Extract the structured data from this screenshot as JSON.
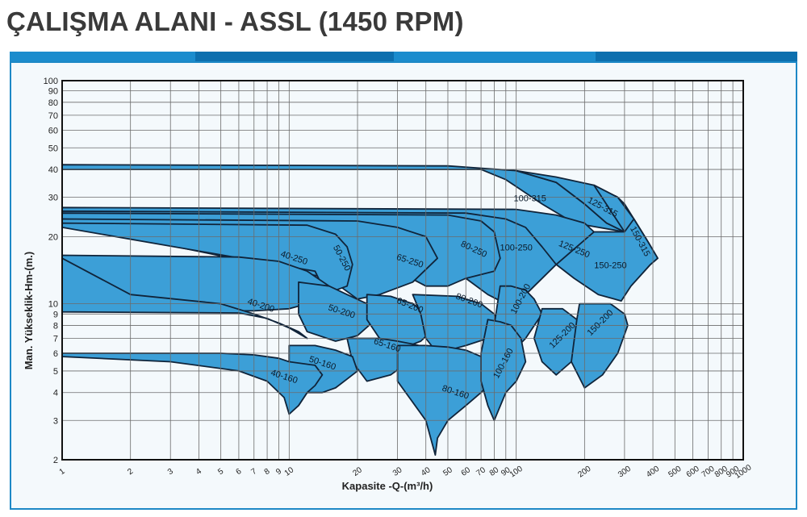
{
  "title": "ÇALIŞMA ALANI - ASSL (1450 RPM)",
  "colors": {
    "band": [
      "#1b8ccd",
      "#0d6fae",
      "#1b8ccd",
      "#0d6fae"
    ],
    "panel_border": "#1d88c6",
    "region_fill": "#3c9fd7",
    "region_stroke": "#10243a",
    "grid": "#6b6b6b",
    "text": "#222222"
  },
  "chart_data": {
    "type": "area",
    "title": "",
    "xlabel": "Kapasite -Q-(m³/h)",
    "ylabel": "Man. Yükseklik-Hm-(m.)",
    "xscale": "log",
    "yscale": "log",
    "xlim": [
      1,
      1000
    ],
    "ylim": [
      2,
      100
    ],
    "grid": true,
    "x_ticks": [
      "1",
      "2",
      "3",
      "4",
      "5",
      "6",
      "7",
      "8",
      "9",
      "10",
      "20",
      "30",
      "40",
      "50",
      "60",
      "70",
      "80",
      "90",
      "100",
      "200",
      "300",
      "400",
      "500",
      "600",
      "700",
      "800",
      "900",
      "1000"
    ],
    "y_ticks": [
      "2",
      "3",
      "4",
      "5",
      "6",
      "7",
      "8",
      "9",
      "10",
      "20",
      "30",
      "40",
      "50",
      "60",
      "70",
      "80",
      "90",
      "100"
    ],
    "regions": [
      {
        "name": "100-315",
        "label_at": [
          115,
          29.5
        ],
        "rotate": 0,
        "polygon": [
          [
            1,
            42
          ],
          [
            50,
            41.5
          ],
          [
            100,
            39.5
          ],
          [
            150,
            35
          ],
          [
            200,
            28
          ],
          [
            250,
            23
          ],
          [
            300,
            21
          ],
          [
            180,
            23
          ],
          [
            130,
            28
          ],
          [
            90,
            36
          ],
          [
            70,
            40
          ],
          [
            1,
            40
          ]
        ]
      },
      {
        "name": "125-315",
        "label_at": [
          240,
          27
        ],
        "rotate": 28,
        "polygon": [
          [
            100,
            39.5
          ],
          [
            150,
            37
          ],
          [
            220,
            34
          ],
          [
            280,
            30
          ],
          [
            300,
            28
          ],
          [
            330,
            24
          ],
          [
            300,
            21
          ],
          [
            250,
            23
          ],
          [
            200,
            28
          ],
          [
            150,
            35
          ]
        ]
      },
      {
        "name": "150-315",
        "label_at": [
          350,
          19
        ],
        "rotate": 62,
        "polygon": [
          [
            220,
            34
          ],
          [
            280,
            30
          ],
          [
            330,
            24
          ],
          [
            380,
            19
          ],
          [
            420,
            16
          ],
          [
            390,
            15
          ],
          [
            320,
            12
          ],
          [
            280,
            14
          ],
          [
            260,
            16
          ],
          [
            300,
            21
          ]
        ]
      },
      {
        "name": "150-250",
        "label_at": [
          260,
          14.8
        ],
        "rotate": 0,
        "polygon": [
          [
            220,
            21
          ],
          [
            300,
            21
          ],
          [
            330,
            24
          ],
          [
            380,
            19
          ],
          [
            420,
            16
          ],
          [
            390,
            15
          ],
          [
            320,
            12
          ],
          [
            290,
            10.3
          ],
          [
            230,
            11
          ],
          [
            180,
            13
          ],
          [
            150,
            15
          ]
        ]
      },
      {
        "name": "125-250",
        "label_at": [
          180,
          17.5
        ],
        "rotate": 22,
        "polygon": [
          [
            1,
            27
          ],
          [
            100,
            26.5
          ],
          [
            150,
            25
          ],
          [
            200,
            23
          ],
          [
            220,
            21
          ],
          [
            150,
            15
          ],
          [
            130,
            13
          ],
          [
            110,
            11
          ],
          [
            90,
            10
          ],
          [
            110,
            12
          ],
          [
            100,
            14
          ],
          [
            80,
            18
          ],
          [
            1,
            25.5
          ]
        ]
      },
      {
        "name": "100-250",
        "label_at": [
          100,
          17.8
        ],
        "rotate": 0,
        "polygon": [
          [
            1,
            26
          ],
          [
            60,
            25.5
          ],
          [
            90,
            24
          ],
          [
            110,
            22
          ],
          [
            130,
            18
          ],
          [
            150,
            15
          ],
          [
            130,
            13
          ],
          [
            110,
            11
          ],
          [
            90,
            10
          ],
          [
            75,
            11
          ],
          [
            60,
            13
          ],
          [
            40,
            18
          ],
          [
            1,
            24
          ]
        ]
      },
      {
        "name": "80-250",
        "label_at": [
          65,
          17.5
        ],
        "rotate": 25,
        "polygon": [
          [
            1,
            25.5
          ],
          [
            50,
            25
          ],
          [
            70,
            23.5
          ],
          [
            80,
            21
          ],
          [
            85,
            16
          ],
          [
            80,
            14
          ],
          [
            60,
            13
          ],
          [
            50,
            12
          ],
          [
            40,
            12
          ],
          [
            30,
            14
          ],
          [
            20,
            20
          ],
          [
            1,
            24
          ]
        ]
      },
      {
        "name": "65-250",
        "label_at": [
          34,
          15.5
        ],
        "rotate": 18,
        "polygon": [
          [
            1,
            24
          ],
          [
            20,
            23.5
          ],
          [
            30,
            22
          ],
          [
            40,
            20
          ],
          [
            45,
            16
          ],
          [
            35,
            12.5
          ],
          [
            25,
            11
          ],
          [
            20,
            10.5
          ],
          [
            15,
            13
          ],
          [
            1,
            23
          ]
        ]
      },
      {
        "name": "50-250",
        "label_at": [
          17,
          16
        ],
        "rotate": 62,
        "polygon": [
          [
            1,
            23
          ],
          [
            12,
            22.5
          ],
          [
            16,
            20.5
          ],
          [
            18,
            18
          ],
          [
            19,
            15
          ],
          [
            18,
            12
          ],
          [
            16,
            11.5
          ],
          [
            14,
            12
          ],
          [
            13,
            14
          ],
          [
            1,
            22
          ]
        ]
      },
      {
        "name": "40-250",
        "label_at": [
          10.5,
          16
        ],
        "rotate": 18,
        "polygon": [
          [
            1,
            16.5
          ],
          [
            6,
            16.2
          ],
          [
            9,
            15.5
          ],
          [
            12,
            14
          ],
          [
            15,
            12
          ],
          [
            14,
            11
          ],
          [
            12,
            10
          ],
          [
            10,
            9.5
          ],
          [
            7,
            9.3
          ],
          [
            1,
            9.3
          ]
        ]
      },
      {
        "name": "40-200",
        "label_at": [
          7.5,
          9.8
        ],
        "rotate": 18,
        "polygon": [
          [
            1,
            9.2
          ],
          [
            6,
            9.1
          ],
          [
            8,
            8.6
          ],
          [
            10,
            7.8
          ],
          [
            12,
            7
          ],
          [
            11,
            7.5
          ],
          [
            9,
            8.2
          ],
          [
            7,
            9
          ],
          [
            5,
            10
          ],
          [
            2,
            11
          ],
          [
            1,
            16
          ]
        ]
      },
      {
        "name": "50-200",
        "label_at": [
          17,
          9.2
        ],
        "rotate": 18,
        "polygon": [
          [
            11,
            12.5
          ],
          [
            15,
            12
          ],
          [
            18,
            11
          ],
          [
            22,
            10
          ],
          [
            25,
            8.8
          ],
          [
            20,
            7.2
          ],
          [
            16,
            6.8
          ],
          [
            12,
            7.5
          ],
          [
            11,
            9
          ]
        ]
      },
      {
        "name": "65-200",
        "label_at": [
          34,
          9.8
        ],
        "rotate": 22,
        "polygon": [
          [
            22,
            11
          ],
          [
            28,
            10.8
          ],
          [
            35,
            10
          ],
          [
            40,
            9
          ],
          [
            45,
            8
          ],
          [
            38,
            6.8
          ],
          [
            30,
            6.2
          ],
          [
            25,
            7
          ],
          [
            22,
            8.5
          ]
        ]
      },
      {
        "name": "80-200",
        "label_at": [
          62,
          10.3
        ],
        "rotate": 20,
        "polygon": [
          [
            35,
            11
          ],
          [
            55,
            10.8
          ],
          [
            70,
            10
          ],
          [
            80,
            9
          ],
          [
            85,
            8
          ],
          [
            75,
            7
          ],
          [
            60,
            6.5
          ],
          [
            45,
            6
          ],
          [
            40,
            7
          ],
          [
            38,
            9
          ]
        ]
      },
      {
        "name": "100-200",
        "label_at": [
          105,
          10.5
        ],
        "rotate": -62,
        "polygon": [
          [
            85,
            12
          ],
          [
            95,
            12
          ],
          [
            110,
            11.5
          ],
          [
            120,
            10.5
          ],
          [
            130,
            9
          ],
          [
            110,
            7
          ],
          [
            95,
            6
          ],
          [
            85,
            6.5
          ],
          [
            80,
            8
          ]
        ]
      },
      {
        "name": "125-200",
        "label_at": [
          160,
          7.2
        ],
        "rotate": -45,
        "polygon": [
          [
            130,
            9.5
          ],
          [
            160,
            9.5
          ],
          [
            185,
            8.5
          ],
          [
            190,
            7
          ],
          [
            175,
            5.5
          ],
          [
            150,
            4.8
          ],
          [
            130,
            5.5
          ],
          [
            120,
            7
          ]
        ]
      },
      {
        "name": "150-200",
        "label_at": [
          235,
          8.2
        ],
        "rotate": -45,
        "polygon": [
          [
            190,
            10
          ],
          [
            260,
            10
          ],
          [
            300,
            9
          ],
          [
            310,
            8
          ],
          [
            280,
            6
          ],
          [
            240,
            4.8
          ],
          [
            200,
            4.2
          ],
          [
            175,
            5.5
          ],
          [
            185,
            8.5
          ]
        ]
      },
      {
        "name": "65-160",
        "label_at": [
          27,
          6.5
        ],
        "rotate": 18,
        "polygon": [
          [
            18,
            7
          ],
          [
            25,
            7
          ],
          [
            30,
            6.8
          ],
          [
            35,
            6.6
          ],
          [
            40,
            6.4
          ],
          [
            38,
            6
          ],
          [
            32,
            5.3
          ],
          [
            28,
            4.8
          ],
          [
            22,
            4.5
          ],
          [
            19,
            5.5
          ]
        ]
      },
      {
        "name": "50-160",
        "label_at": [
          14,
          5.4
        ],
        "rotate": 18,
        "polygon": [
          [
            10,
            6.5
          ],
          [
            13,
            6.5
          ],
          [
            16,
            6.2
          ],
          [
            19,
            5.8
          ],
          [
            20,
            5
          ],
          [
            18,
            4.6
          ],
          [
            16,
            4.2
          ],
          [
            14,
            4
          ],
          [
            12,
            4
          ],
          [
            11,
            3.5
          ],
          [
            10,
            4.5
          ]
        ]
      },
      {
        "name": "40-160",
        "label_at": [
          9.5,
          4.7
        ],
        "rotate": 18,
        "polygon": [
          [
            1,
            6
          ],
          [
            5,
            6
          ],
          [
            7,
            5.9
          ],
          [
            9,
            5.7
          ],
          [
            10,
            5.5
          ],
          [
            13,
            5.3
          ],
          [
            14,
            4.8
          ],
          [
            13,
            4.3
          ],
          [
            12,
            4
          ],
          [
            11,
            3.5
          ],
          [
            10,
            3.2
          ],
          [
            9.5,
            3.8
          ],
          [
            8,
            4.5
          ],
          [
            6,
            5
          ],
          [
            3,
            5.5
          ],
          [
            1,
            5.8
          ]
        ]
      },
      {
        "name": "80-160",
        "label_at": [
          54,
          4
        ],
        "rotate": 18,
        "polygon": [
          [
            30,
            6.5
          ],
          [
            40,
            6.5
          ],
          [
            50,
            6.4
          ],
          [
            60,
            6.2
          ],
          [
            70,
            5.8
          ],
          [
            80,
            5
          ],
          [
            78,
            4.5
          ],
          [
            70,
            4
          ],
          [
            60,
            3.5
          ],
          [
            50,
            3
          ],
          [
            45,
            2.5
          ],
          [
            44,
            2.1
          ],
          [
            40,
            3
          ],
          [
            30,
            4.5
          ]
        ]
      },
      {
        "name": "100-160",
        "label_at": [
          88,
          5.4
        ],
        "rotate": -62,
        "polygon": [
          [
            75,
            8.5
          ],
          [
            85,
            8.3
          ],
          [
            95,
            8
          ],
          [
            105,
            7
          ],
          [
            110,
            5.5
          ],
          [
            100,
            4.5
          ],
          [
            90,
            4
          ],
          [
            80,
            3
          ],
          [
            75,
            3.5
          ],
          [
            70,
            4.5
          ],
          [
            70,
            6
          ]
        ]
      }
    ]
  }
}
